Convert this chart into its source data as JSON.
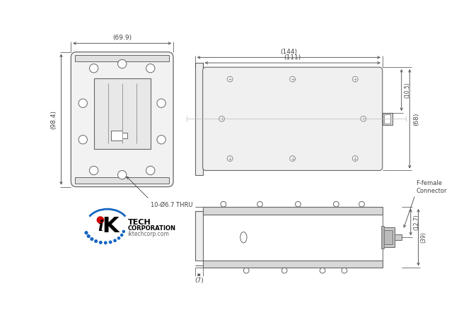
{
  "bg_color": "#ffffff",
  "line_color": "#666666",
  "dim_color": "#444444",
  "dim_144": "(144)",
  "dim_111": "(111)",
  "dim_699": "(69.9)",
  "dim_984": "(98.4)",
  "dim_68": "(68)",
  "dim_105": "(10.5)",
  "dim_127": "(12.7)",
  "dim_39": "(39)",
  "dim_7": "(7)",
  "note_holes": "10-Ø6.7 THRU",
  "label_connector": "F-female\nConnector"
}
